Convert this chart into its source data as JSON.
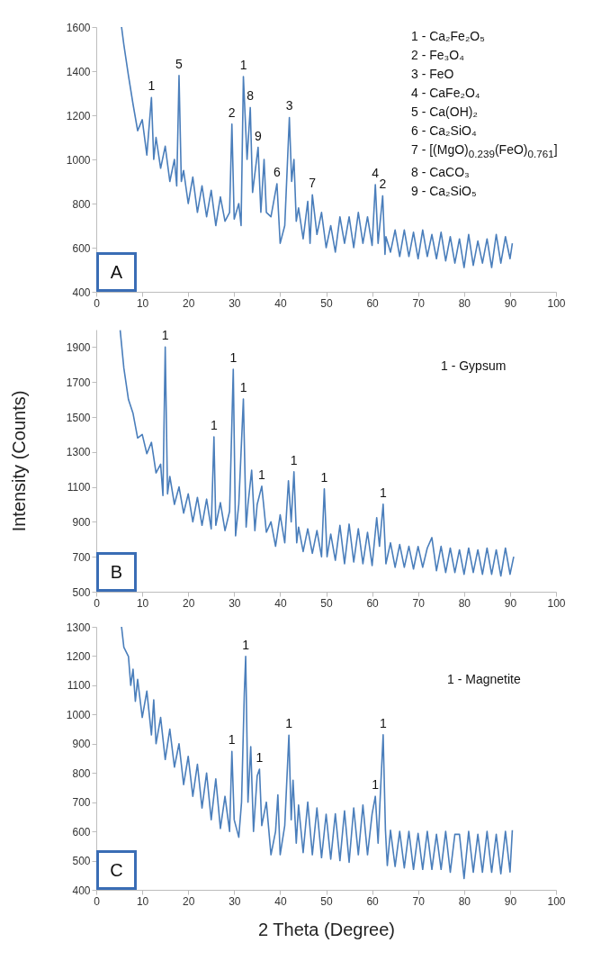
{
  "chart_data": [
    {
      "type": "line",
      "title": "A",
      "annotations": [
        "1 - Ca₂Fe₂O₅",
        "2 - Fe₃O₄",
        "3 - FeO",
        "4 - CaFe₂O₄",
        "5 - Ca(OH)₂",
        "6 - Ca₂SiO₄",
        "7 - [(MgO)$_{0.239}$(FeO)$_{0.761}$]",
        "8 - CaCO₃",
        "9 - Ca₂SiO₅",
        {
          "text": "1",
          "x": 12,
          "y": 1280
        },
        {
          "text": "5",
          "x": 18,
          "y": 1380
        },
        {
          "text": "2",
          "x": 29.5,
          "y": 1160
        },
        {
          "text": "1",
          "x": 32,
          "y": 1375
        },
        {
          "text": "8",
          "x": 33.5,
          "y": 1235
        },
        {
          "text": "9",
          "x": 35.2,
          "y": 1055
        },
        {
          "text": "6",
          "x": 39.3,
          "y": 890
        },
        {
          "text": "3",
          "x": 42,
          "y": 1190
        },
        {
          "text": "7",
          "x": 47,
          "y": 840
        },
        {
          "text": "4",
          "x": 60.7,
          "y": 886
        },
        {
          "text": "2",
          "x": 62.3,
          "y": 835
        }
      ],
      "x": [
        5.5,
        6,
        7,
        8,
        9,
        10,
        11,
        12,
        12.5,
        13,
        14,
        15,
        16,
        17,
        17.5,
        18,
        18.5,
        19,
        20,
        21,
        22,
        23,
        24,
        25,
        26,
        27,
        28,
        29,
        29.5,
        30,
        31,
        31.5,
        32,
        32.8,
        33.5,
        34,
        35.2,
        35.8,
        36.5,
        37,
        38,
        39.3,
        40,
        41,
        42,
        42.5,
        43,
        43.5,
        44,
        45,
        46,
        46.5,
        47,
        48,
        49,
        50,
        51,
        52,
        53,
        54,
        55,
        56,
        57,
        58,
        59,
        60,
        60.7,
        61.3,
        62.3,
        62.8,
        63,
        64,
        65,
        66,
        67,
        68,
        69,
        70,
        71,
        72,
        73,
        74,
        75,
        76,
        77,
        78,
        79,
        80,
        81,
        82,
        83,
        84,
        85,
        86,
        87,
        88,
        89,
        90,
        90.5
      ],
      "series": [
        {
          "color": "#4a7ebb",
          "values": [
            1600,
            1520,
            1380,
            1250,
            1130,
            1180,
            1020,
            1280,
            1000,
            1100,
            960,
            1060,
            900,
            1000,
            880,
            1380,
            900,
            950,
            800,
            920,
            760,
            880,
            740,
            860,
            700,
            830,
            720,
            760,
            1160,
            730,
            800,
            700,
            1375,
            1000,
            1235,
            850,
            1055,
            760,
            1000,
            760,
            740,
            890,
            620,
            700,
            1190,
            900,
            1000,
            720,
            780,
            640,
            810,
            620,
            840,
            660,
            760,
            600,
            700,
            580,
            740,
            620,
            740,
            600,
            760,
            620,
            740,
            610,
            886,
            620,
            835,
            570,
            650,
            580,
            680,
            560,
            680,
            560,
            670,
            550,
            680,
            560,
            660,
            550,
            670,
            540,
            650,
            530,
            640,
            510,
            660,
            520,
            630,
            530,
            640,
            510,
            660,
            530,
            650,
            550,
            620
          ]
        }
      ],
      "xlim": [
        0,
        100
      ],
      "xticks": [
        0,
        10,
        20,
        30,
        40,
        50,
        60,
        70,
        80,
        90,
        100
      ],
      "ylim": [
        400,
        1600
      ],
      "yticks": [
        400,
        600,
        800,
        1000,
        1200,
        1400,
        1600
      ]
    },
    {
      "type": "line",
      "title": "B",
      "ylabel": "Intensity (Counts)",
      "annotations": [
        "1 - Gypsum",
        {
          "text": "1",
          "x": 15,
          "y": 1900
        },
        {
          "text": "1",
          "x": 25.6,
          "y": 1386
        },
        {
          "text": "1",
          "x": 29.8,
          "y": 1773
        },
        {
          "text": "1",
          "x": 32,
          "y": 1603
        },
        {
          "text": "1",
          "x": 36,
          "y": 1104
        },
        {
          "text": "1",
          "x": 43,
          "y": 1186
        },
        {
          "text": "1",
          "x": 49.6,
          "y": 1089
        },
        {
          "text": "1",
          "x": 62.4,
          "y": 1001
        }
      ],
      "x": [
        5.2,
        6,
        7,
        8,
        9,
        10,
        11,
        12,
        13,
        14,
        14.5,
        15,
        15.5,
        16,
        17,
        18,
        19,
        20,
        21,
        22,
        23,
        24,
        25,
        25.6,
        26,
        27,
        28,
        29,
        29.8,
        30.3,
        31,
        32,
        32.6,
        33,
        33.8,
        34.5,
        35,
        36,
        37,
        38,
        39,
        40,
        41,
        41.8,
        42.4,
        43,
        43.6,
        44,
        45,
        46,
        47,
        48,
        49,
        49.6,
        50.2,
        51,
        52,
        53,
        54,
        55,
        56,
        57,
        58,
        59,
        60,
        61,
        61.6,
        62.4,
        63,
        64,
        65,
        66,
        67,
        68,
        69,
        70,
        71,
        72,
        73,
        74,
        75,
        76,
        77,
        78,
        79,
        80,
        81,
        82,
        83,
        84,
        85,
        86,
        87,
        88,
        89,
        90,
        90.8
      ],
      "series": [
        {
          "color": "#4a7ebb",
          "values": [
            1997,
            1780,
            1600,
            1520,
            1380,
            1400,
            1290,
            1355,
            1180,
            1230,
            1050,
            1900,
            1060,
            1160,
            1000,
            1100,
            950,
            1060,
            900,
            1040,
            880,
            1030,
            860,
            1386,
            880,
            1010,
            850,
            960,
            1773,
            820,
            1000,
            1603,
            870,
            1000,
            1195,
            850,
            1000,
            1104,
            840,
            900,
            760,
            940,
            780,
            1135,
            900,
            1186,
            780,
            870,
            730,
            860,
            720,
            850,
            700,
            1089,
            700,
            830,
            680,
            880,
            660,
            887,
            670,
            860,
            660,
            840,
            650,
            924,
            760,
            1001,
            660,
            780,
            640,
            770,
            640,
            760,
            630,
            759,
            640,
            750,
            810,
            620,
            760,
            610,
            750,
            610,
            740,
            600,
            750,
            610,
            740,
            600,
            750,
            600,
            740,
            590,
            750,
            600,
            700
          ]
        }
      ],
      "xlim": [
        0,
        100
      ],
      "xticks": [
        0,
        10,
        20,
        30,
        40,
        50,
        60,
        70,
        80,
        90,
        100
      ],
      "ylim": [
        500,
        2000
      ],
      "yticks": [
        500,
        700,
        900,
        1100,
        1300,
        1500,
        1700,
        1900
      ]
    },
    {
      "type": "line",
      "title": "C",
      "xlabel": "2 Theta (Degree)",
      "annotations": [
        "1 - Magnetite",
        {
          "text": "1",
          "x": 29.5,
          "y": 874
        },
        {
          "text": "1",
          "x": 32.5,
          "y": 1199
        },
        {
          "text": "1",
          "x": 35.5,
          "y": 813
        },
        {
          "text": "1",
          "x": 41.9,
          "y": 929
        },
        {
          "text": "1",
          "x": 60.7,
          "y": 720
        },
        {
          "text": "1",
          "x": 62.4,
          "y": 931
        }
      ],
      "x": [
        5.5,
        6,
        7,
        7.5,
        8,
        8.5,
        9,
        10,
        11,
        12,
        12.5,
        13,
        14,
        15,
        16,
        17,
        18,
        19,
        20,
        21,
        22,
        23,
        24,
        25,
        26,
        27,
        28,
        29,
        29.5,
        30,
        31,
        31.6,
        32.2,
        32.5,
        33,
        33.6,
        34.2,
        35,
        35.5,
        36,
        37,
        38,
        39,
        39.5,
        40,
        41,
        41.9,
        42.4,
        42.8,
        43.5,
        44,
        45,
        46,
        47,
        48,
        49,
        50,
        51,
        52,
        53,
        54,
        55,
        56,
        57,
        58,
        59,
        60,
        60.7,
        61.3,
        62.4,
        62.9,
        63.3,
        64,
        65,
        66,
        67,
        68,
        69,
        70,
        71,
        72,
        73,
        74,
        75,
        76,
        77,
        78,
        79,
        80,
        81,
        82,
        83,
        84,
        85,
        86,
        87,
        88,
        89,
        90,
        90.5
      ],
      "series": [
        {
          "color": "#4a7ebb",
          "values": [
            1300,
            1230,
            1199,
            1100,
            1155,
            1045,
            1120,
            990,
            1080,
            930,
            1050,
            900,
            990,
            846,
            950,
            820,
            900,
            760,
            857,
            720,
            830,
            680,
            800,
            640,
            780,
            610,
            720,
            600,
            874,
            640,
            580,
            700,
            1072,
            1199,
            700,
            890,
            600,
            790,
            813,
            620,
            700,
            520,
            600,
            725,
            520,
            620,
            929,
            640,
            775,
            560,
            690,
            527,
            700,
            520,
            680,
            510,
            659,
            505,
            660,
            500,
            670,
            494,
            680,
            520,
            690,
            520,
            660,
            720,
            560,
            931,
            604,
            483,
            604,
            480,
            600,
            475,
            600,
            470,
            593,
            470,
            600,
            470,
            590,
            470,
            600,
            460,
            590,
            590,
            439,
            600,
            460,
            590,
            460,
            600,
            460,
            590,
            455,
            600,
            461,
            604
          ]
        }
      ],
      "xlim": [
        0,
        100
      ],
      "xticks": [
        0,
        10,
        20,
        30,
        40,
        50,
        60,
        70,
        80,
        90,
        100
      ],
      "ylim": [
        400,
        1300
      ],
      "yticks": [
        400,
        500,
        600,
        700,
        800,
        900,
        1000,
        1100,
        1200,
        1300
      ]
    }
  ]
}
